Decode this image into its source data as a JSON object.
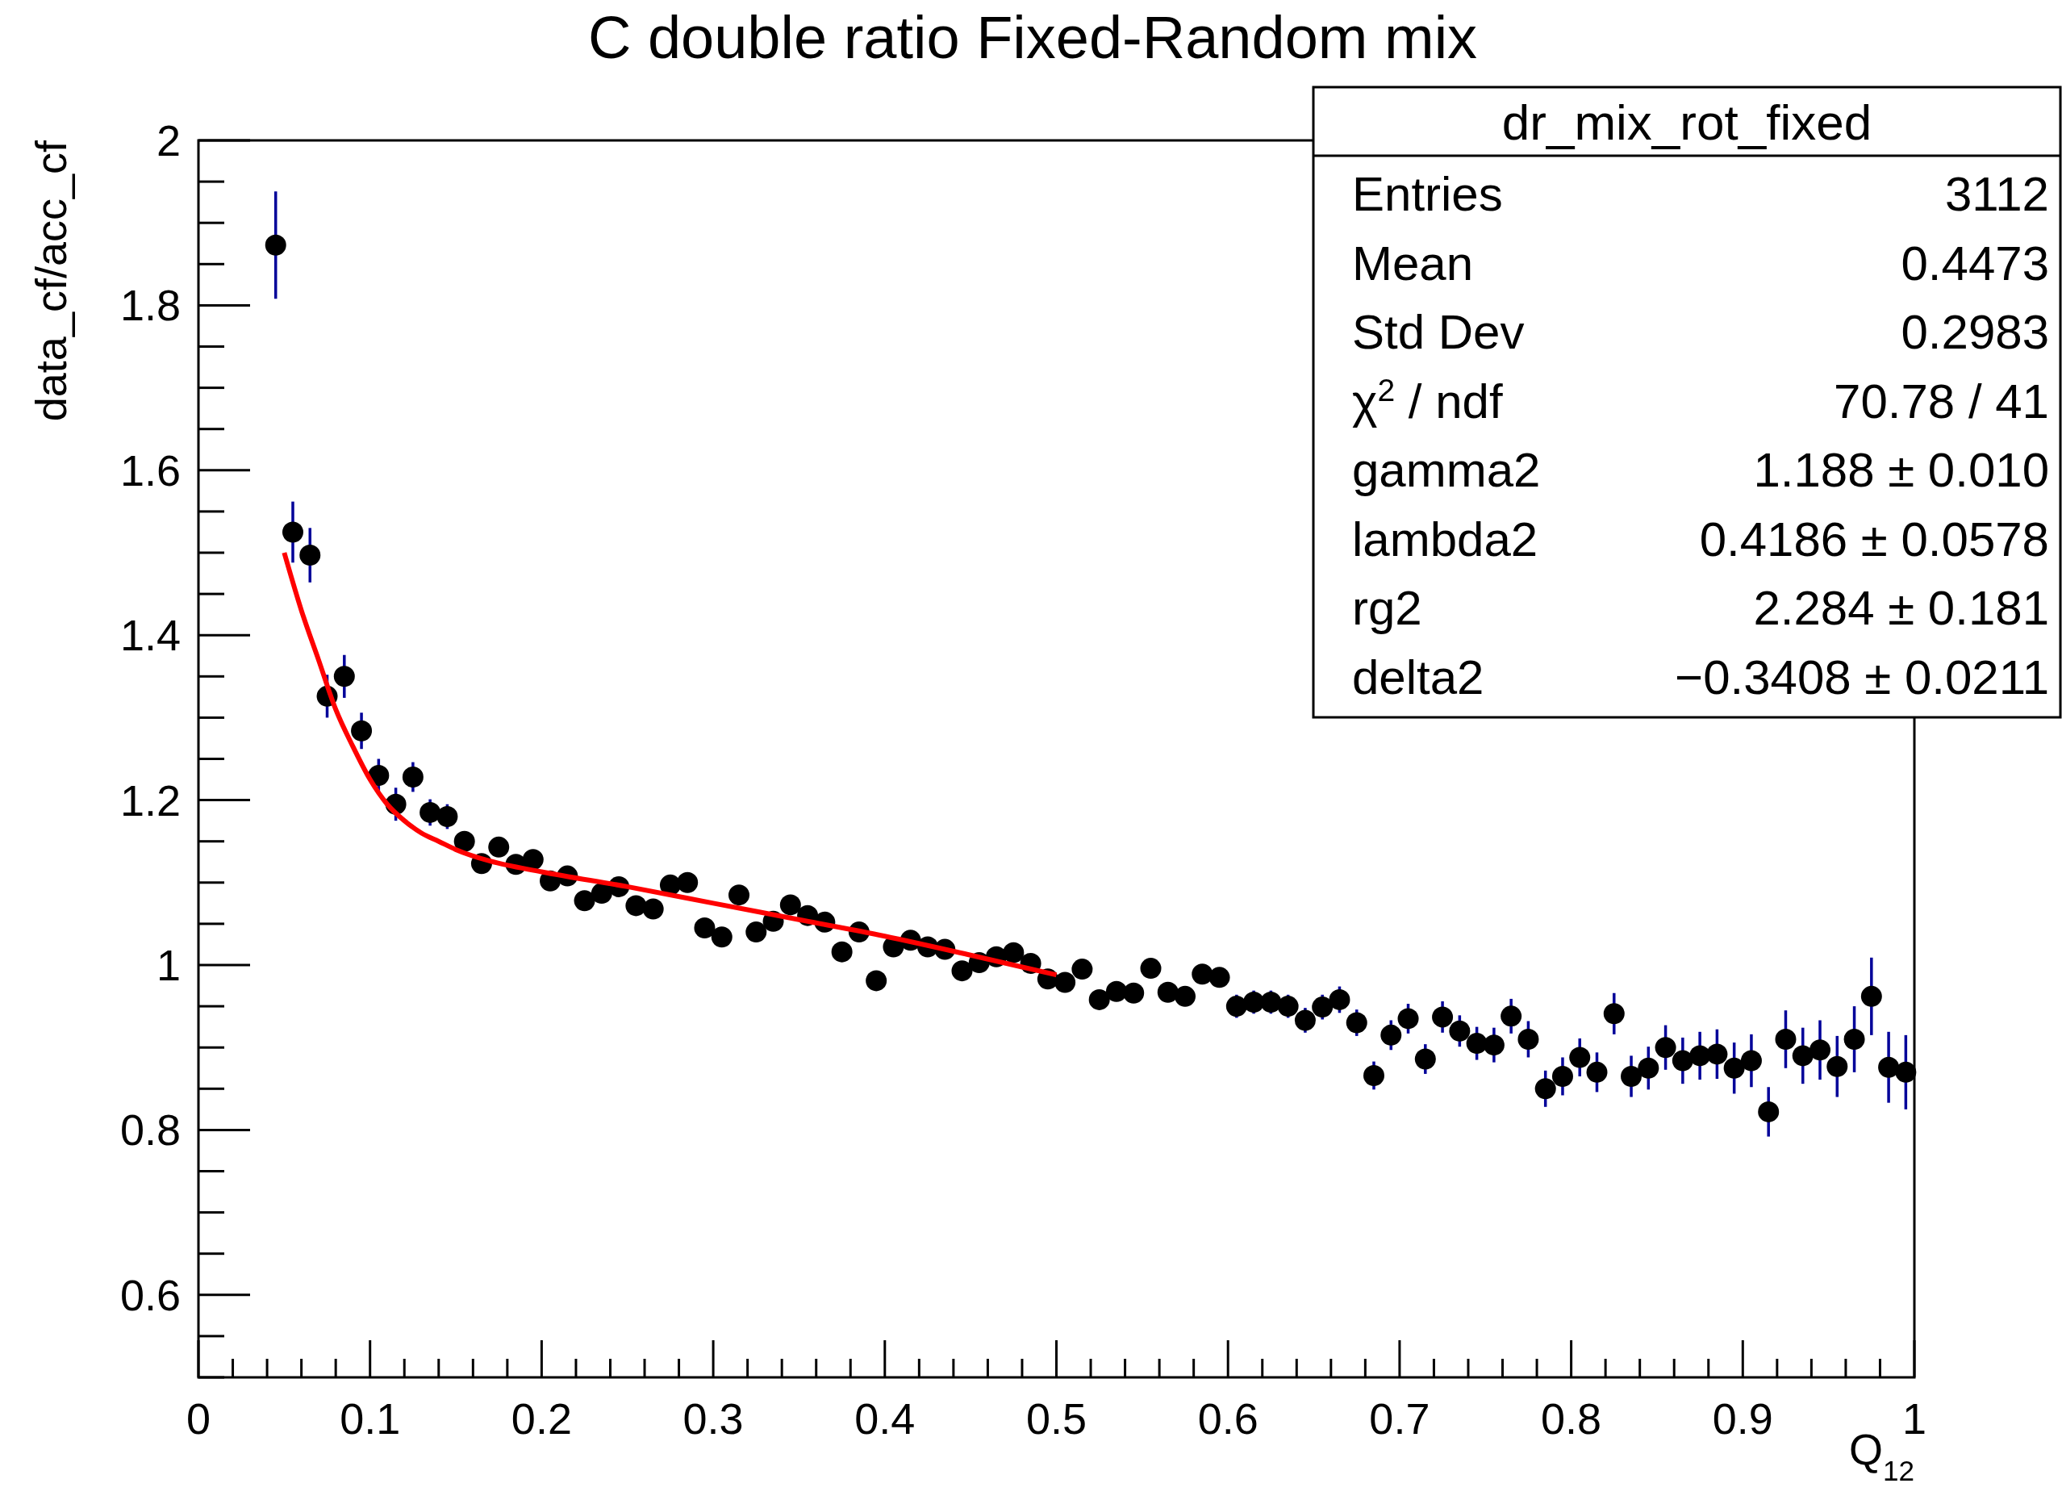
{
  "chart_data": {
    "type": "scatter",
    "title": "C double ratio Fixed-Random mix",
    "xlabel": "Q$_{12}$",
    "ylabel": "data_cf/acc_cf",
    "xlim": [
      0,
      1
    ],
    "ylim": [
      0.5,
      2
    ],
    "xticks": [
      0,
      0.1,
      0.2,
      0.3,
      0.4,
      0.5,
      0.6,
      0.7,
      0.8,
      0.9,
      1
    ],
    "yticks": [
      0.6,
      0.8,
      1,
      1.2,
      1.4,
      1.6,
      1.8,
      2
    ],
    "marker": "circle",
    "series": [
      {
        "color": "#000000",
        "x": [
          0.045,
          0.055,
          0.065,
          0.075,
          0.085,
          0.095,
          0.105,
          0.115,
          0.125,
          0.135,
          0.145,
          0.155,
          0.165,
          0.175,
          0.185,
          0.195,
          0.205,
          0.215,
          0.225,
          0.235,
          0.245,
          0.255,
          0.265,
          0.275,
          0.285,
          0.295,
          0.305,
          0.315,
          0.325,
          0.335,
          0.345,
          0.355,
          0.365,
          0.375,
          0.385,
          0.395,
          0.405,
          0.415,
          0.425,
          0.435,
          0.445,
          0.455,
          0.465,
          0.475,
          0.485,
          0.495,
          0.505,
          0.515,
          0.525,
          0.535,
          0.545,
          0.555,
          0.565,
          0.575,
          0.585,
          0.595,
          0.605,
          0.615,
          0.625,
          0.635,
          0.645,
          0.655,
          0.665,
          0.675,
          0.685,
          0.695,
          0.705,
          0.715,
          0.725,
          0.735,
          0.745,
          0.755,
          0.765,
          0.775,
          0.785,
          0.795,
          0.805,
          0.815,
          0.825,
          0.835,
          0.845,
          0.855,
          0.865,
          0.875,
          0.885,
          0.895,
          0.905,
          0.915,
          0.925,
          0.935,
          0.945,
          0.955,
          0.965,
          0.975,
          0.985,
          0.995
        ],
        "values": [
          1.873,
          1.525,
          1.497,
          1.326,
          1.35,
          1.284,
          1.23,
          1.195,
          1.228,
          1.185,
          1.18,
          1.15,
          1.123,
          1.143,
          1.122,
          1.128,
          1.102,
          1.108,
          1.078,
          1.087,
          1.095,
          1.072,
          1.068,
          1.097,
          1.1,
          1.045,
          1.034,
          1.085,
          1.04,
          1.053,
          1.073,
          1.06,
          1.052,
          1.016,
          1.04,
          0.981,
          1.022,
          1.03,
          1.022,
          1.019,
          0.993,
          1.003,
          1.01,
          1.015,
          1.002,
          0.983,
          0.979,
          0.995,
          0.958,
          0.968,
          0.966,
          0.996,
          0.967,
          0.962,
          0.989,
          0.985,
          0.95,
          0.955,
          0.955,
          0.95,
          0.933,
          0.949,
          0.958,
          0.93,
          0.866,
          0.915,
          0.935,
          0.886,
          0.937,
          0.92,
          0.905,
          0.903,
          0.938,
          0.91,
          0.85,
          0.865,
          0.888,
          0.87,
          0.941,
          0.865,
          0.875,
          0.9,
          0.884,
          0.89,
          0.892,
          0.875,
          0.884,
          0.822,
          0.91,
          0.89,
          0.897,
          0.877,
          0.91,
          0.962,
          0.876,
          0.87
        ],
        "errors": [
          0.065,
          0.037,
          0.033,
          0.026,
          0.026,
          0.022,
          0.02,
          0.02,
          0.018,
          0.016,
          0.015,
          null,
          null,
          null,
          null,
          null,
          null,
          null,
          null,
          null,
          null,
          null,
          null,
          null,
          null,
          null,
          null,
          null,
          null,
          null,
          null,
          null,
          null,
          null,
          null,
          null,
          null,
          null,
          null,
          null,
          null,
          null,
          null,
          null,
          null,
          null,
          null,
          null,
          null,
          null,
          null,
          null,
          null,
          null,
          null,
          null,
          0.014,
          0.014,
          0.014,
          0.014,
          0.015,
          0.015,
          0.016,
          0.016,
          0.017,
          0.018,
          0.018,
          0.018,
          0.019,
          0.019,
          0.02,
          0.021,
          0.021,
          0.022,
          0.022,
          0.023,
          0.023,
          0.024,
          0.025,
          0.025,
          0.026,
          0.027,
          0.028,
          0.029,
          0.03,
          0.031,
          0.032,
          0.03,
          0.035,
          0.034,
          0.036,
          0.037,
          0.04,
          0.047,
          0.043,
          0.045
        ]
      },
      {
        "type": "line",
        "color": "#ff0000",
        "marker": "none",
        "x": [
          0.05,
          0.06,
          0.07,
          0.08,
          0.09,
          0.1,
          0.11,
          0.12,
          0.13,
          0.14,
          0.15,
          0.17,
          0.2,
          0.25,
          0.3,
          0.35,
          0.4,
          0.45,
          0.5
        ],
        "values": [
          1.5,
          1.43,
          1.37,
          1.31,
          1.265,
          1.225,
          1.195,
          1.175,
          1.16,
          1.15,
          1.14,
          1.126,
          1.113,
          1.095,
          1.075,
          1.055,
          1.035,
          1.012,
          0.988
        ]
      }
    ],
    "annotations": [
      "dr_mix_rot_fixed",
      "Entries",
      "3112",
      "Mean",
      "0.4473",
      "Std Dev",
      "0.2983",
      "χ$^{2}$ / ndf",
      "70.78 / 41",
      "gamma2",
      "1.188 ± 0.010",
      "lambda2",
      "0.4186 ± 0.0578",
      "rg2",
      "2.284 ± 0.181",
      "delta2",
      "−0.3408 ± 0.0211"
    ]
  }
}
